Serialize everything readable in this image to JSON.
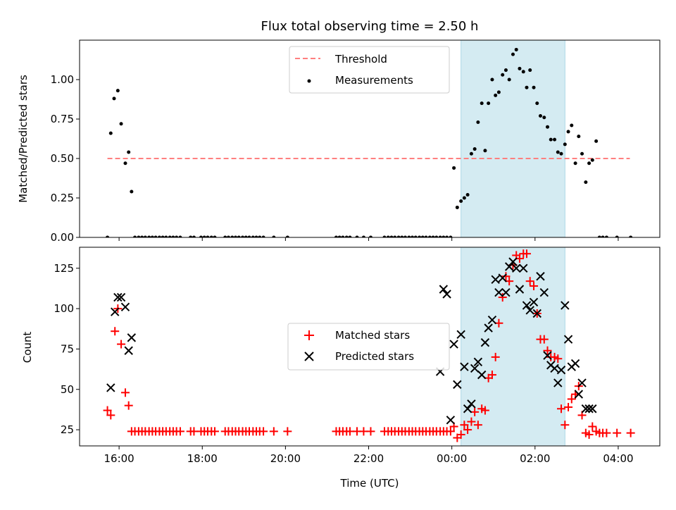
{
  "chart_data": [
    {
      "type": "scatter",
      "title": "Flux total observing time = 2.50 h",
      "xlabel": "",
      "ylabel": "Matched/Predicted stars",
      "xlim": [
        15.05,
        29.0
      ],
      "ylim": [
        0.0,
        1.25
      ],
      "yticks": [
        0.0,
        0.25,
        0.5,
        0.75,
        1.0
      ],
      "ytick_labels": [
        "0.00",
        "0.25",
        "0.50",
        "0.75",
        "1.00"
      ],
      "shaded_region": [
        24.22,
        26.72
      ],
      "shade_color": "#d4ebf2",
      "legend": {
        "position": "top-center",
        "entries": [
          "Threshold",
          "Measurements"
        ]
      },
      "threshold": {
        "name": "Threshold",
        "value": 0.5,
        "x": [
          15.72,
          28.28
        ],
        "color": "#ff7f7f",
        "style": "dashed"
      },
      "series": [
        {
          "name": "Measurements",
          "color": "#000000",
          "marker": "dot",
          "x": [
            15.72,
            15.8,
            15.88,
            15.97,
            16.05,
            16.15,
            16.23,
            16.3,
            16.38,
            16.47,
            16.55,
            16.63,
            16.72,
            16.8,
            16.88,
            16.97,
            17.05,
            17.13,
            17.22,
            17.3,
            17.38,
            17.47,
            17.72,
            17.8,
            17.97,
            18.05,
            18.13,
            18.22,
            18.3,
            18.55,
            18.63,
            18.72,
            18.8,
            18.88,
            18.97,
            19.05,
            19.13,
            19.22,
            19.3,
            19.38,
            19.47,
            19.72,
            20.05,
            21.22,
            21.3,
            21.38,
            21.47,
            21.55,
            21.72,
            21.88,
            22.05,
            22.38,
            22.47,
            22.55,
            22.63,
            22.72,
            22.8,
            22.88,
            22.97,
            23.05,
            23.13,
            23.22,
            23.3,
            23.38,
            23.47,
            23.55,
            23.63,
            23.72,
            23.8,
            23.88,
            23.97,
            24.05,
            24.13,
            24.22,
            24.3,
            24.38,
            24.47,
            24.55,
            24.63,
            24.72,
            24.8,
            24.88,
            24.97,
            25.05,
            25.13,
            25.22,
            25.3,
            25.38,
            25.47,
            25.55,
            25.63,
            25.72,
            25.8,
            25.88,
            25.97,
            26.05,
            26.13,
            26.22,
            26.3,
            26.38,
            26.47,
            26.55,
            26.63,
            26.72,
            26.8,
            26.88,
            26.97,
            27.05,
            27.13,
            27.22,
            27.3,
            27.38,
            27.47,
            27.55,
            27.63,
            27.72,
            27.97,
            28.3
          ],
          "y": [
            0.0,
            0.66,
            0.88,
            0.93,
            0.72,
            0.47,
            0.54,
            0.29,
            0.0,
            0.0,
            0.0,
            0.0,
            0.0,
            0.0,
            0.0,
            0.0,
            0.0,
            0.0,
            0.0,
            0.0,
            0.0,
            0.0,
            0.0,
            0.0,
            0.0,
            0.0,
            0.0,
            0.0,
            0.0,
            0.0,
            0.0,
            0.0,
            0.0,
            0.0,
            0.0,
            0.0,
            0.0,
            0.0,
            0.0,
            0.0,
            0.0,
            0.0,
            0.0,
            0.0,
            0.0,
            0.0,
            0.0,
            0.0,
            0.0,
            0.0,
            0.0,
            0.0,
            0.0,
            0.0,
            0.0,
            0.0,
            0.0,
            0.0,
            0.0,
            0.0,
            0.0,
            0.0,
            0.0,
            0.0,
            0.0,
            0.0,
            0.0,
            0.0,
            0.0,
            0.0,
            0.0,
            0.44,
            0.19,
            0.23,
            0.25,
            0.27,
            0.53,
            0.56,
            0.73,
            0.85,
            0.55,
            0.85,
            1.0,
            0.9,
            0.92,
            1.03,
            1.06,
            1.0,
            1.16,
            1.19,
            1.07,
            1.05,
            0.95,
            1.06,
            0.95,
            0.85,
            0.77,
            0.76,
            0.7,
            0.62,
            0.62,
            0.54,
            0.53,
            0.59,
            0.67,
            0.71,
            0.47,
            0.64,
            0.53,
            0.35,
            0.47,
            0.49,
            0.61,
            0.0,
            0.0,
            0.0,
            0.0,
            0.0
          ]
        }
      ]
    },
    {
      "type": "scatter",
      "title": "",
      "xlabel": "Time (UTC)",
      "ylabel": "Count",
      "xlim": [
        15.05,
        29.0
      ],
      "ylim": [
        15,
        138
      ],
      "yticks": [
        25,
        50,
        75,
        100,
        125
      ],
      "ytick_labels": [
        "25",
        "50",
        "75",
        "100",
        "125"
      ],
      "xticks": [
        16,
        18,
        20,
        22,
        24,
        26,
        28
      ],
      "xtick_labels": [
        "16:00",
        "18:00",
        "20:00",
        "22:00",
        "00:00",
        "02:00",
        "04:00"
      ],
      "shaded_region": [
        24.22,
        26.72
      ],
      "shade_color": "#d4ebf2",
      "legend": {
        "position": "center",
        "entries": [
          "Matched stars",
          "Predicted stars"
        ]
      },
      "series": [
        {
          "name": "Matched stars",
          "color": "#ff0000",
          "marker": "plus",
          "x": [
            15.72,
            15.8,
            15.9,
            15.97,
            16.05,
            16.15,
            16.23,
            16.3,
            16.38,
            16.47,
            16.55,
            16.63,
            16.72,
            16.8,
            16.88,
            16.97,
            17.05,
            17.13,
            17.22,
            17.3,
            17.38,
            17.47,
            17.72,
            17.8,
            17.97,
            18.05,
            18.13,
            18.22,
            18.3,
            18.55,
            18.63,
            18.72,
            18.8,
            18.88,
            18.97,
            19.05,
            19.13,
            19.22,
            19.3,
            19.38,
            19.47,
            19.72,
            20.05,
            21.22,
            21.3,
            21.38,
            21.47,
            21.55,
            21.72,
            21.88,
            22.05,
            22.38,
            22.47,
            22.55,
            22.63,
            22.72,
            22.8,
            22.88,
            22.97,
            23.05,
            23.13,
            23.22,
            23.3,
            23.38,
            23.47,
            23.55,
            23.63,
            23.72,
            23.8,
            23.88,
            23.97,
            24.05,
            24.13,
            24.22,
            24.3,
            24.38,
            24.47,
            24.55,
            24.63,
            24.72,
            24.8,
            24.88,
            24.97,
            25.05,
            25.13,
            25.22,
            25.3,
            25.38,
            25.47,
            25.55,
            25.63,
            25.72,
            25.8,
            25.88,
            25.97,
            26.05,
            26.13,
            26.22,
            26.3,
            26.38,
            26.47,
            26.55,
            26.63,
            26.72,
            26.8,
            26.88,
            26.97,
            27.05,
            27.13,
            27.22,
            27.3,
            27.38,
            27.47,
            27.55,
            27.63,
            27.72,
            27.97,
            28.3
          ],
          "y": [
            37,
            34,
            86,
            100,
            78,
            48,
            40,
            24,
            24,
            24,
            24,
            24,
            24,
            24,
            24,
            24,
            24,
            24,
            24,
            24,
            24,
            24,
            24,
            24,
            24,
            24,
            24,
            24,
            24,
            24,
            24,
            24,
            24,
            24,
            24,
            24,
            24,
            24,
            24,
            24,
            24,
            24,
            24,
            24,
            24,
            24,
            24,
            24,
            24,
            24,
            24,
            24,
            24,
            24,
            24,
            24,
            24,
            24,
            24,
            24,
            24,
            24,
            24,
            24,
            24,
            24,
            24,
            24,
            24,
            24,
            24,
            27,
            20,
            22,
            28,
            25,
            30,
            36,
            28,
            38,
            37,
            57,
            59,
            70,
            91,
            107,
            120,
            117,
            127,
            133,
            131,
            134,
            134,
            117,
            114,
            97,
            81,
            81,
            74,
            70,
            70,
            69,
            38,
            28,
            39,
            44,
            47,
            52,
            34,
            23,
            22,
            27,
            24,
            23,
            23,
            23,
            23,
            23
          ]
        },
        {
          "name": "Predicted stars",
          "color": "#000000",
          "marker": "x",
          "x": [
            15.8,
            15.9,
            15.97,
            16.05,
            16.15,
            16.23,
            16.3,
            23.72,
            23.8,
            23.88,
            23.97,
            24.05,
            24.13,
            24.22,
            24.3,
            24.38,
            24.47,
            24.55,
            24.63,
            24.72,
            24.8,
            24.88,
            24.97,
            25.05,
            25.13,
            25.22,
            25.3,
            25.38,
            25.47,
            25.55,
            25.63,
            25.72,
            25.8,
            25.88,
            25.97,
            26.05,
            26.13,
            26.22,
            26.3,
            26.38,
            26.47,
            26.55,
            26.63,
            26.72,
            26.8,
            26.88,
            26.97,
            27.05,
            27.13,
            27.22,
            27.3,
            27.38
          ],
          "y": [
            51,
            98,
            107,
            107,
            101,
            74,
            82,
            61,
            112,
            109,
            31,
            78,
            53,
            84,
            64,
            38,
            41,
            63,
            67,
            59,
            79,
            88,
            93,
            118,
            110,
            119,
            110,
            126,
            129,
            125,
            112,
            125,
            102,
            99,
            104,
            97,
            120,
            110,
            71,
            65,
            63,
            54,
            62,
            102,
            81,
            64,
            66,
            47,
            54,
            38,
            38,
            38
          ]
        }
      ]
    }
  ]
}
